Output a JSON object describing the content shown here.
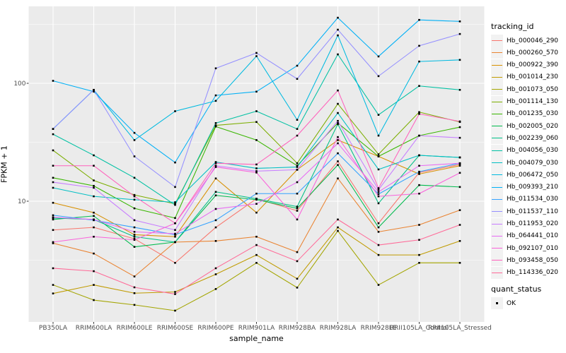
{
  "chart_data": {
    "type": "line",
    "title": "",
    "xlabel": "sample_name",
    "ylabel": "FPKM + 1",
    "y_scale": "log10",
    "ylim": [
      1,
      450
    ],
    "y_ticks": [
      100,
      10
    ],
    "y_minor_ticks": [
      316.23,
      31.62,
      3.162
    ],
    "grid": true,
    "legend_position": "right",
    "point_marker": {
      "shape": "square",
      "color": "#000000"
    },
    "panel_color": "#EBEBEB",
    "grid_color": "#FFFFFF",
    "tick_label_color": "#4D4D4D",
    "categories": [
      "PB350LA",
      "RRIM600LA",
      "RRIM600LE",
      "RRIM600SE",
      "RRIM600PE",
      "RRIM901LA",
      "RRIM928BA",
      "RRIM928LA",
      "RRIM928LE",
      "RRII105LA_Control",
      "RRII105LA_Stressed"
    ],
    "series": [
      {
        "id": "Hb_000046_290",
        "color": "#F8766D",
        "values": [
          5.7,
          6.0,
          4.8,
          3.0,
          6.0,
          10.5,
          8.3,
          21.8,
          6.5,
          17.5,
          20.5
        ]
      },
      {
        "id": "Hb_000260_570",
        "color": "#EA8331",
        "values": [
          4.4,
          3.6,
          2.3,
          4.5,
          4.6,
          5.0,
          3.7,
          15.6,
          5.5,
          6.3,
          8.4
        ]
      },
      {
        "id": "Hb_000922_390",
        "color": "#D89000",
        "values": [
          9.7,
          8.0,
          5.2,
          5.0,
          15.6,
          8.0,
          18.5,
          33,
          24,
          17,
          20
        ]
      },
      {
        "id": "Hb_001014_230",
        "color": "#C09B00",
        "values": [
          1.65,
          1.95,
          1.66,
          1.7,
          2.4,
          3.5,
          2.2,
          6.0,
          3.5,
          3.5,
          4.6
        ]
      },
      {
        "id": "Hb_001073_050",
        "color": "#A3A500",
        "values": [
          1.95,
          1.45,
          1.32,
          1.18,
          1.8,
          3.0,
          1.85,
          5.6,
          1.95,
          3.0,
          3.0
        ]
      },
      {
        "id": "Hb_001114_130",
        "color": "#7CAE00",
        "values": [
          27,
          15,
          11.3,
          9.5,
          44,
          47,
          21,
          67,
          25,
          57,
          47
        ]
      },
      {
        "id": "Hb_001235_030",
        "color": "#39B600",
        "values": [
          15.8,
          13.5,
          8.7,
          7.2,
          43,
          33,
          20,
          46,
          24,
          36,
          42.5
        ]
      },
      {
        "id": "Hb_002005_020",
        "color": "#00BB4E",
        "values": [
          7.0,
          7.5,
          4.1,
          4.5,
          11.2,
          10.3,
          8.7,
          20.3,
          6.0,
          13.7,
          13.2
        ]
      },
      {
        "id": "Hb_002239_060",
        "color": "#00C087",
        "values": [
          7.2,
          7.0,
          5.0,
          4.5,
          12.0,
          10.5,
          9.0,
          45,
          9.6,
          24.5,
          23.5
        ]
      },
      {
        "id": "Hb_004056_030",
        "color": "#00C1A3",
        "values": [
          37,
          24.5,
          15.8,
          9.3,
          46,
          58,
          41,
          176,
          54,
          95,
          88
        ]
      },
      {
        "id": "Hb_004079_030",
        "color": "#00BFC4",
        "values": [
          13,
          11,
          10.3,
          9.8,
          21.5,
          19,
          19.5,
          56,
          18.6,
          24.5,
          23.5
        ]
      },
      {
        "id": "Hb_006472_050",
        "color": "#00BAE0",
        "values": [
          41,
          88,
          33,
          58,
          71,
          170,
          49,
          255,
          36,
          153,
          158
        ]
      },
      {
        "id": "Hb_009393_210",
        "color": "#00B0F6",
        "values": [
          105,
          85,
          38,
          21.3,
          79,
          85,
          141,
          360,
          169,
          345,
          335
        ]
      },
      {
        "id": "Hb_011534_030",
        "color": "#35A2FF",
        "values": [
          7.6,
          6.9,
          6.0,
          5.2,
          6.9,
          11.6,
          11.6,
          25.5,
          11.5,
          17.8,
          21
        ]
      },
      {
        "id": "Hb_011537_110",
        "color": "#9590FF",
        "values": [
          41,
          88,
          24,
          13.2,
          134,
          181,
          109,
          285,
          115,
          208,
          262
        ]
      },
      {
        "id": "Hb_011953_020",
        "color": "#C77CFF",
        "values": [
          14.5,
          13,
          6.9,
          5.7,
          20,
          18,
          18.5,
          48,
          12.5,
          36,
          34.5
        ]
      },
      {
        "id": "Hb_064441_010",
        "color": "#E76BF3",
        "values": [
          7.3,
          7.0,
          5.5,
          5.3,
          8.6,
          9.5,
          14.5,
          31,
          12,
          20,
          21
        ]
      },
      {
        "id": "Hb_092107_010",
        "color": "#FA62DB",
        "values": [
          4.5,
          5.0,
          4.7,
          6.5,
          19.5,
          17.5,
          7.0,
          35,
          11,
          11.6,
          17.4
        ]
      },
      {
        "id": "Hb_093458_050",
        "color": "#FF62BC",
        "values": [
          20,
          20,
          11.0,
          6.5,
          21,
          20.5,
          36,
          87,
          12.9,
          55,
          47.5
        ]
      },
      {
        "id": "Hb_114336_020",
        "color": "#FF6A98",
        "values": [
          2.7,
          2.55,
          1.86,
          1.63,
          2.7,
          4.25,
          3.1,
          7.0,
          4.25,
          4.7,
          6.3
        ]
      }
    ],
    "legend": {
      "tracking_title": "tracking_id",
      "quant_title": "quant_status",
      "quant_items": [
        {
          "label": "OK"
        }
      ]
    }
  }
}
